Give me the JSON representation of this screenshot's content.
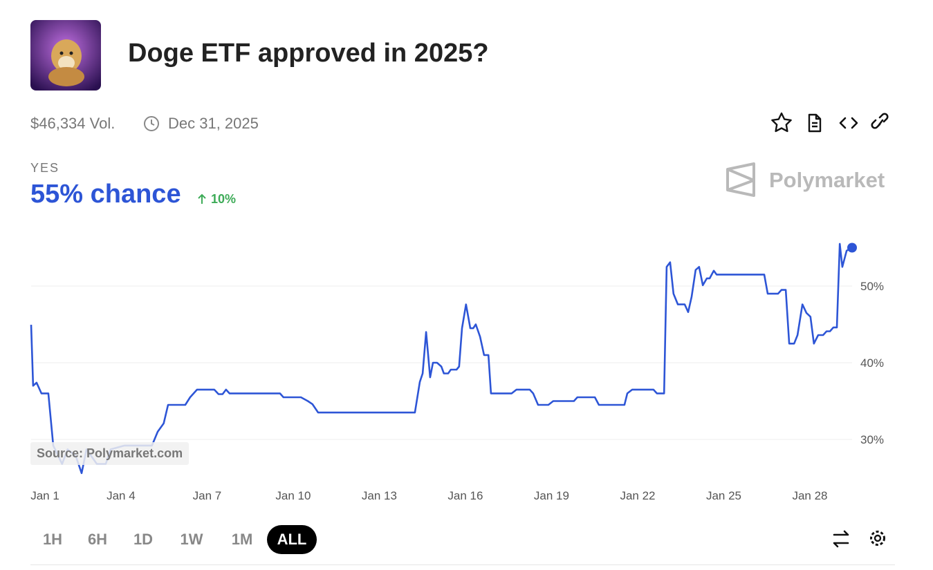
{
  "header": {
    "title": "Doge ETF approved in 2025?",
    "volume": "$46,334 Vol.",
    "end_date": "Dec 31, 2025"
  },
  "outcome": {
    "label": "YES",
    "chance": "55% chance",
    "change": "10%"
  },
  "brand": "Polymarket",
  "source": "Source: Polymarket.com",
  "ranges": [
    "1H",
    "6H",
    "1D",
    "1W",
    "1M",
    "ALL"
  ],
  "active_range": "ALL",
  "chart_data": {
    "type": "line",
    "color": "#2d55d6",
    "grid": true,
    "xlim": [
      0.87,
      29.47
    ],
    "xticks": [
      {
        "value": 1,
        "label": "Jan 1"
      },
      {
        "value": 4,
        "label": "Jan 4"
      },
      {
        "value": 7,
        "label": "Jan 7"
      },
      {
        "value": 10,
        "label": "Jan 10"
      },
      {
        "value": 13,
        "label": "Jan 13"
      },
      {
        "value": 16,
        "label": "Jan 16"
      },
      {
        "value": 19,
        "label": "Jan 19"
      },
      {
        "value": 22,
        "label": "Jan 22"
      },
      {
        "value": 25,
        "label": "Jan 25"
      },
      {
        "value": 28,
        "label": "Jan 28"
      }
    ],
    "ylim": [
      25,
      57
    ],
    "yticks": [
      {
        "value": 30,
        "label": "30%"
      },
      {
        "value": 40,
        "label": "40%"
      },
      {
        "value": 50,
        "label": "50%"
      }
    ],
    "series": [
      {
        "name": "Yes",
        "color": "#2d55d6",
        "x": [
          0.87,
          0.94,
          1.06,
          1.23,
          1.47,
          1.64,
          1.95,
          2.14,
          2.43,
          2.63,
          2.8,
          3.16,
          3.47,
          3.64,
          4.12,
          5.08,
          5.28,
          5.49,
          5.64,
          6.24,
          6.41,
          6.65,
          7.25,
          7.4,
          7.54,
          7.66,
          7.78,
          9.54,
          9.66,
          10.27,
          10.51,
          10.67,
          10.87,
          14.24,
          14.41,
          14.51,
          14.63,
          14.77,
          14.87,
          15.01,
          15.16,
          15.25,
          15.4,
          15.49,
          15.69,
          15.78,
          15.88,
          16.02,
          16.17,
          16.27,
          16.36,
          16.51,
          16.65,
          16.8,
          16.89,
          17.61,
          17.78,
          18.24,
          18.36,
          18.53,
          18.89,
          19.06,
          19.78,
          19.9,
          20.51,
          20.65,
          21.54,
          21.64,
          21.81,
          22.55,
          22.67,
          22.92,
          23.01,
          23.13,
          23.25,
          23.4,
          23.64,
          23.76,
          23.88,
          24.02,
          24.14,
          24.27,
          24.41,
          24.51,
          24.65,
          24.75,
          26.41,
          26.53,
          26.89,
          27.01,
          27.16,
          27.28,
          27.45,
          27.57,
          27.74,
          27.88,
          28.02,
          28.14,
          28.29,
          28.46,
          28.58,
          28.7,
          28.82,
          28.94,
          29.04,
          29.13,
          29.28,
          29.47
        ],
        "values": [
          44.95,
          37.0,
          37.4,
          36.0,
          36.0,
          29.2,
          26.8,
          28.7,
          27.8,
          25.6,
          28.7,
          26.8,
          26.8,
          28.7,
          29.2,
          29.2,
          31.0,
          32.1,
          34.5,
          34.5,
          35.5,
          36.5,
          36.5,
          35.9,
          35.9,
          36.5,
          36.0,
          36.0,
          35.5,
          35.5,
          35.0,
          34.6,
          33.5,
          33.5,
          37.5,
          38.6,
          44.0,
          38.1,
          40.0,
          40.0,
          39.5,
          38.6,
          38.6,
          39.1,
          39.1,
          39.5,
          44.5,
          47.6,
          44.5,
          44.5,
          45.0,
          43.4,
          41.0,
          41.0,
          36.0,
          36.0,
          36.5,
          36.5,
          36.0,
          34.5,
          34.5,
          35.0,
          35.0,
          35.5,
          35.5,
          34.5,
          34.5,
          36.0,
          36.5,
          36.5,
          36.0,
          36.0,
          52.5,
          53.1,
          49.0,
          47.6,
          47.6,
          46.6,
          48.6,
          52.1,
          52.5,
          50.1,
          51.0,
          51.0,
          52.0,
          51.5,
          51.5,
          49.0,
          49.0,
          49.5,
          49.5,
          42.5,
          42.5,
          43.6,
          47.6,
          46.5,
          46.0,
          42.5,
          43.6,
          43.6,
          44.1,
          44.1,
          44.6,
          44.6,
          55.5,
          52.5,
          54.6,
          55.0
        ]
      }
    ]
  }
}
